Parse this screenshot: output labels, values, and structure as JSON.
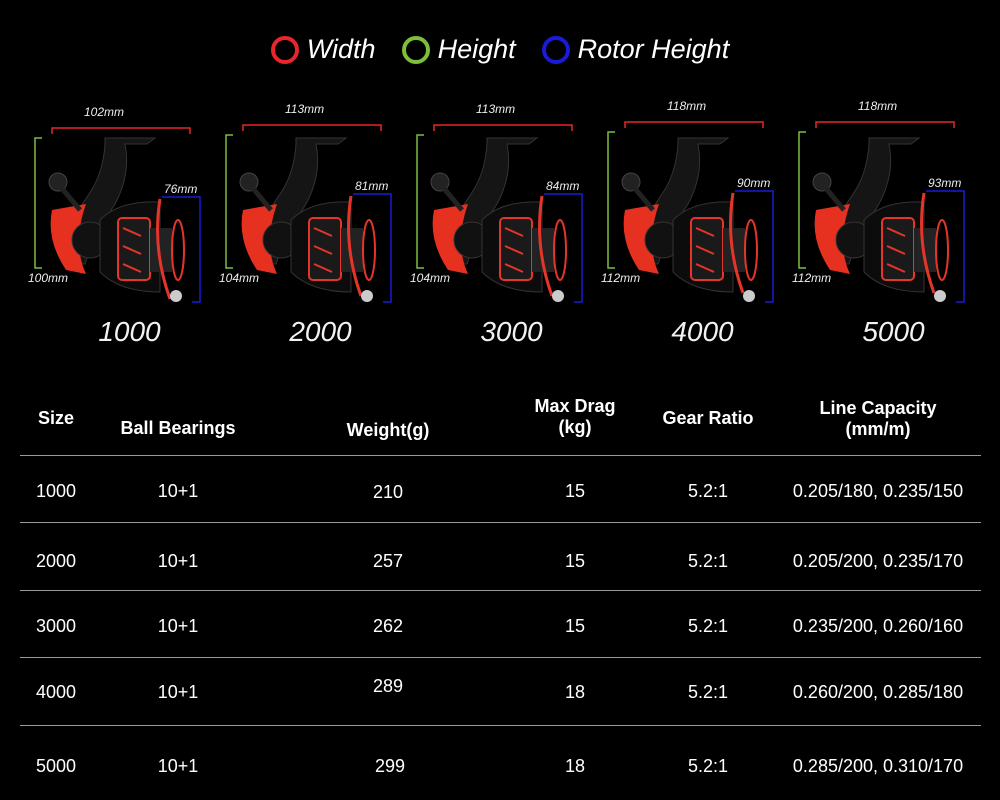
{
  "legend": [
    {
      "label": "Width",
      "color": "#e8262b"
    },
    {
      "label": "Height",
      "color": "#7cbf3a"
    },
    {
      "label": "Rotor Height",
      "color": "#1a1ad8"
    }
  ],
  "reels": [
    {
      "model": "1000",
      "width": "102mm",
      "height": "100mm",
      "rotor_height": "76mm"
    },
    {
      "model": "2000",
      "width": "113mm",
      "height": "104mm",
      "rotor_height": "81mm"
    },
    {
      "model": "3000",
      "width": "113mm",
      "height": "104mm",
      "rotor_height": "84mm"
    },
    {
      "model": "4000",
      "width": "118mm",
      "height": "112mm",
      "rotor_height": "90mm"
    },
    {
      "model": "5000",
      "width": "118mm",
      "height": "112mm",
      "rotor_height": "93mm"
    }
  ],
  "table": {
    "headers": [
      {
        "line1": "Size",
        "line2": ""
      },
      {
        "line1": "Ball Bearings",
        "line2": ""
      },
      {
        "line1": "Weight(g)",
        "line2": ""
      },
      {
        "line1": "Max Drag",
        "line2": "(kg)"
      },
      {
        "line1": "Gear Ratio",
        "line2": ""
      },
      {
        "line1": "Line Capacity",
        "line2": "(mm/m)"
      }
    ],
    "rows": [
      [
        "1000",
        "10+1",
        "210",
        "15",
        "5.2:1",
        "0.205/180, 0.235/150"
      ],
      [
        "2000",
        "10+1",
        "257",
        "15",
        "5.2:1",
        "0.205/200, 0.235/170"
      ],
      [
        "3000",
        "10+1",
        "262",
        "15",
        "5.2:1",
        "0.235/200, 0.260/160"
      ],
      [
        "4000",
        "10+1",
        "289",
        "18",
        "5.2:1",
        "0.260/200, 0.285/180"
      ],
      [
        "5000",
        "10+1",
        "299",
        "18",
        "5.2:1",
        "0.285/200, 0.310/170"
      ]
    ]
  }
}
